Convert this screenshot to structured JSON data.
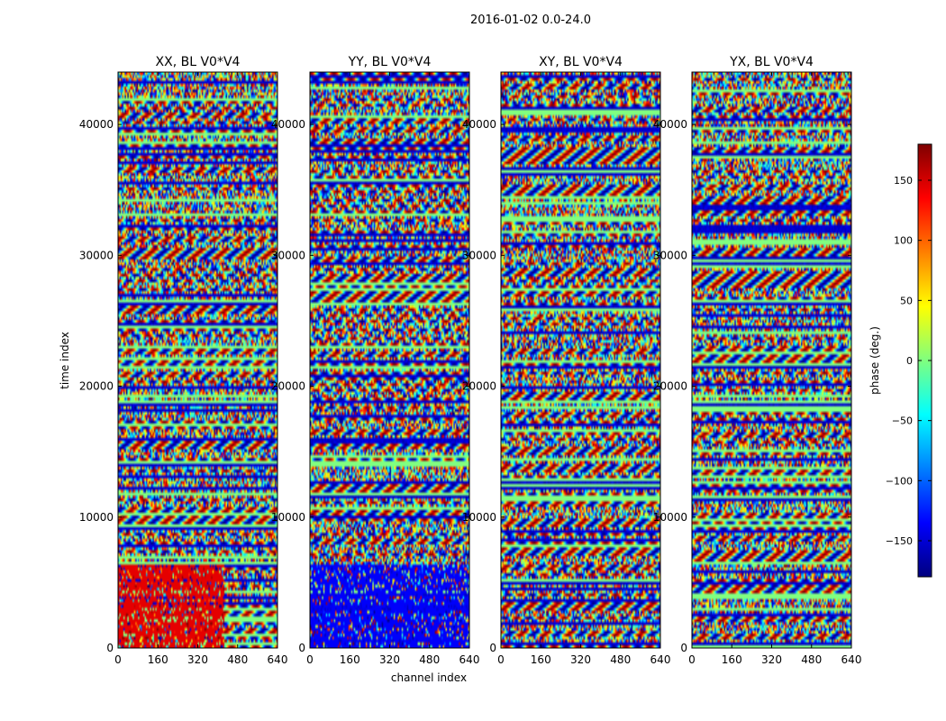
{
  "chart_data": {
    "type": "heatmap",
    "suptitle": "2016-01-02 0.0-24.0",
    "xlabel": "channel index",
    "ylabel": "time index",
    "xlim": [
      0,
      640
    ],
    "ylim": [
      0,
      44000
    ],
    "xticks": [
      0,
      160,
      320,
      480,
      640
    ],
    "yticks": [
      0,
      10000,
      20000,
      30000,
      40000
    ],
    "panels": [
      {
        "title": "XX, BL V0*V4",
        "polarization": "XX"
      },
      {
        "title": "YY, BL V0*V4",
        "polarization": "YY"
      },
      {
        "title": "XY, BL V0*V4",
        "polarization": "XY"
      },
      {
        "title": "YX, BL V0*V4",
        "polarization": "YX"
      }
    ],
    "colorbar": {
      "label": "phase (deg.)",
      "colormap": "jet",
      "range": [
        -180,
        180
      ],
      "ticks": [
        -150,
        -100,
        -50,
        0,
        50,
        100,
        150
      ]
    }
  }
}
